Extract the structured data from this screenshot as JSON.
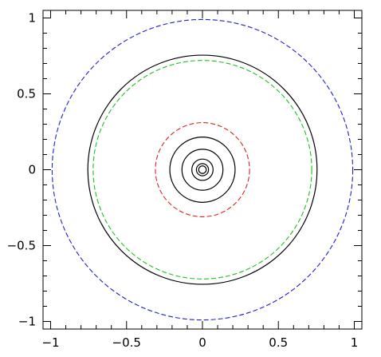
{
  "chart_data": {
    "type": "contour",
    "title": "",
    "xlabel": "",
    "ylabel": "",
    "xlim": [
      -1.05,
      1.05
    ],
    "ylim": [
      -1.05,
      1.05
    ],
    "grid": false,
    "legend": "none",
    "x_ticks": [
      {
        "value": -1,
        "label": "−1"
      },
      {
        "value": -0.5,
        "label": "−0.5"
      },
      {
        "value": 0,
        "label": "0"
      },
      {
        "value": 0.5,
        "label": "0.5"
      },
      {
        "value": 1,
        "label": "1"
      }
    ],
    "y_ticks": [
      {
        "value": -1,
        "label": "−1"
      },
      {
        "value": -0.5,
        "label": "−0.5"
      },
      {
        "value": 0,
        "label": "0"
      },
      {
        "value": 0.5,
        "label": "0.5"
      },
      {
        "value": 1,
        "label": "1"
      }
    ],
    "circles": [
      {
        "id": "solid-outer",
        "center": [
          0,
          0
        ],
        "radius": 0.755,
        "style": "solid",
        "color": "#000000"
      },
      {
        "id": "solid-4",
        "center": [
          0,
          0
        ],
        "radius": 0.215,
        "style": "solid",
        "color": "#000000"
      },
      {
        "id": "solid-3",
        "center": [
          0,
          0
        ],
        "radius": 0.135,
        "style": "solid",
        "color": "#000000"
      },
      {
        "id": "solid-2",
        "center": [
          0,
          0
        ],
        "radius": 0.07,
        "style": "solid",
        "color": "#000000"
      },
      {
        "id": "solid-1",
        "center": [
          0,
          0
        ],
        "radius": 0.04,
        "style": "solid",
        "color": "#000000"
      },
      {
        "id": "solid-0",
        "center": [
          0,
          0
        ],
        "radius": 0.025,
        "style": "solid",
        "color": "#000000"
      },
      {
        "id": "dashed-blue",
        "center": [
          0,
          0
        ],
        "radius": 0.99,
        "style": "dashed",
        "color": "#2020d0"
      },
      {
        "id": "dashed-green",
        "center": [
          0,
          0
        ],
        "radius": 0.72,
        "style": "dashed",
        "color": "#20c020"
      },
      {
        "id": "dashed-red",
        "center": [
          0,
          0
        ],
        "radius": 0.31,
        "style": "dashed",
        "color": "#e02020"
      }
    ]
  }
}
